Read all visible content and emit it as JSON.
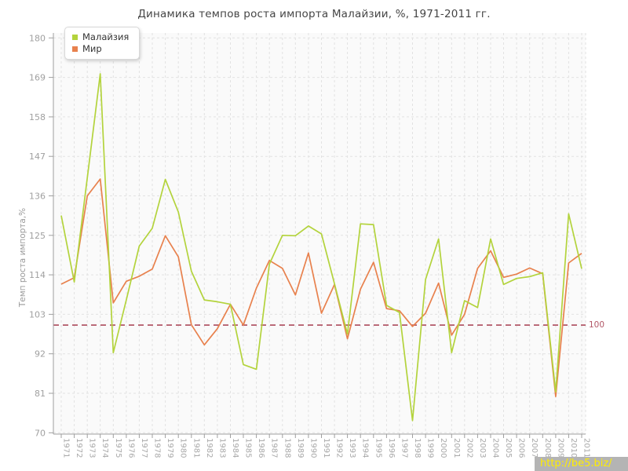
{
  "chart_data": {
    "type": "line",
    "title": "Динамика темпов роста импорта Малайзии, %, 1971-2011 гг.",
    "ylabel": "Темп роста импорта,%",
    "xlabel": "",
    "x": [
      1971,
      1972,
      1973,
      1974,
      1975,
      1976,
      1977,
      1978,
      1979,
      1980,
      1981,
      1982,
      1983,
      1984,
      1985,
      1986,
      1987,
      1988,
      1989,
      1990,
      1991,
      1992,
      1993,
      1994,
      1995,
      1996,
      1997,
      1998,
      1999,
      2000,
      2001,
      2002,
      2003,
      2004,
      2005,
      2006,
      2007,
      2008,
      2009,
      2010,
      2011
    ],
    "y_ticks": [
      70,
      81,
      92,
      103,
      114,
      125,
      136,
      147,
      158,
      169,
      180
    ],
    "ylim": [
      70,
      180
    ],
    "grid": "dashed",
    "legend_position": "top-left",
    "guide_line": {
      "value": 100,
      "label": "100",
      "color": "#b25767"
    },
    "series": [
      {
        "id": "malaysia",
        "name": "Малайзия",
        "color": "#b3d33c",
        "values": [
          130.5,
          112,
          141,
          170,
          92.3,
          107,
          122,
          127,
          140.6,
          131.5,
          115,
          107,
          106.5,
          105.8,
          89,
          87.7,
          117,
          125,
          124.9,
          127.6,
          125.4,
          111.5,
          97.5,
          128.2,
          128,
          105.5,
          103.5,
          73.4,
          112.7,
          124,
          92.3,
          106.8,
          104.9,
          124,
          111.3,
          113,
          113.5,
          114.6,
          81.4,
          131,
          115.7
        ]
      },
      {
        "id": "world",
        "name": "Мир",
        "color": "#e8814d",
        "values": [
          111.4,
          113.2,
          136,
          140.7,
          106.2,
          112.2,
          113.6,
          115.6,
          124.9,
          119,
          100.1,
          94.5,
          99,
          105.8,
          100,
          110.3,
          118,
          115.8,
          108.4,
          120.1,
          103.3,
          111.3,
          96.2,
          110,
          117.5,
          104.6,
          104,
          99.6,
          103.3,
          111.7,
          97.2,
          103,
          115.8,
          120.7,
          113.3,
          114.2,
          115.9,
          114.3,
          80.1,
          117.3,
          120
        ]
      }
    ]
  },
  "watermark": {
    "text": "http://be5.biz/"
  }
}
